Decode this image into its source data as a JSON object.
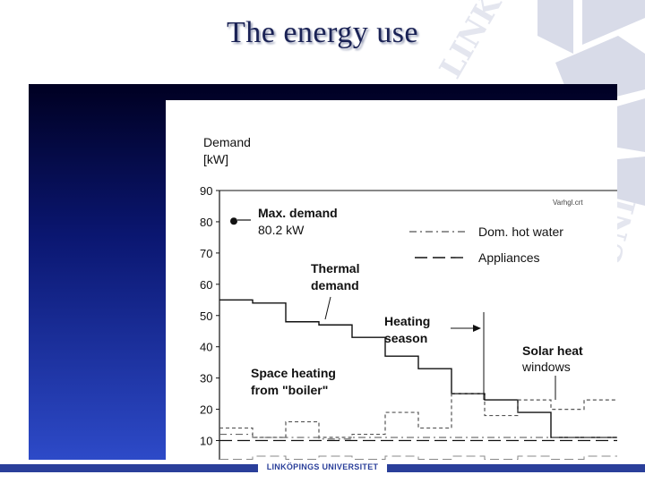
{
  "slide": {
    "title": "The energy use"
  },
  "footer": {
    "text": "LINKÖPINGS UNIVERSITET"
  },
  "chart_data": {
    "type": "line",
    "ylabel_line1": "Demand",
    "ylabel_line2": "[kW]",
    "ylim": [
      5,
      90
    ],
    "y_ticks": [
      10,
      20,
      30,
      40,
      50,
      60,
      70,
      80,
      90
    ],
    "source_tag": "Varhgl.crt",
    "grid": false,
    "legend": [
      {
        "name": "Dom. hot water",
        "style": "dash-dot"
      },
      {
        "name": "Appliances",
        "style": "long-dash"
      }
    ],
    "annotations": {
      "max_demand_label": "Max. demand",
      "max_demand_value": "80.2 kW",
      "max_demand_kw": 80.2,
      "thermal_line1": "Thermal",
      "thermal_line2": "demand",
      "heating_line1": "Heating",
      "heating_line2": "season",
      "space_line1": "Space heating",
      "space_line2": "from \"boiler\"",
      "solar_line1": "Solar heat",
      "solar_line2": "windows"
    },
    "series": [
      {
        "key": "thermal",
        "values": [
          55,
          54,
          48,
          47,
          43,
          37,
          33,
          25,
          23,
          19,
          11,
          11
        ]
      },
      {
        "key": "total",
        "values": [
          14,
          11,
          16,
          11,
          12,
          19,
          14,
          25,
          18,
          23,
          20,
          23
        ]
      },
      {
        "key": "hot_water",
        "values": [
          12,
          11,
          11,
          10.5,
          11,
          11,
          11,
          11,
          11,
          11,
          11,
          11
        ]
      },
      {
        "key": "appliances",
        "values": [
          10,
          10,
          10,
          10,
          10,
          10,
          10,
          10,
          10,
          10,
          10,
          10
        ]
      },
      {
        "key": "space_heating",
        "values": [
          4,
          5,
          4,
          5,
          4,
          5,
          4,
          5,
          4,
          5,
          4,
          5
        ]
      }
    ]
  }
}
